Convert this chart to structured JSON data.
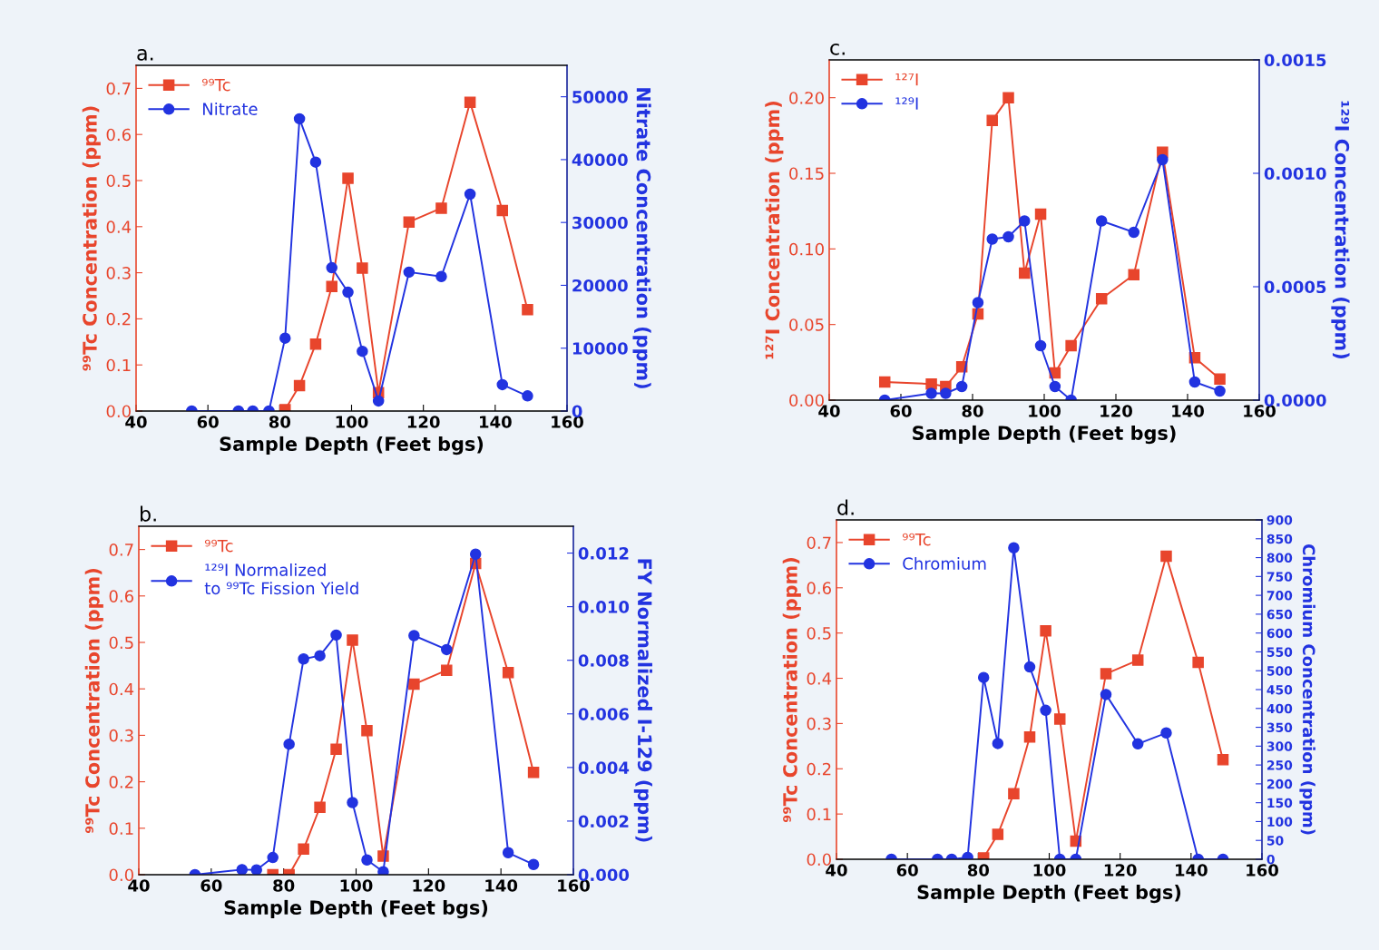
{
  "chart_data": [
    {
      "type": "line",
      "title": "a.",
      "xlabel": "Sample Depth (Feet bgs)",
      "ylabel": "⁹⁹Tc Concentration (ppm)",
      "y2label": "Nitrate Concentration (ppm)",
      "xlim": [
        40,
        160
      ],
      "xticks": [
        40,
        60,
        80,
        100,
        120,
        140,
        160
      ],
      "ylim": [
        0,
        0.75
      ],
      "yticks": [
        {
          "value": 0,
          "label": "0.0"
        },
        0.1,
        0.2,
        0.3,
        0.4,
        0.5,
        0.6,
        0.7
      ],
      "y2lim": [
        0,
        55000
      ],
      "y2ticks": [
        0,
        10000,
        20000,
        30000,
        40000,
        50000
      ],
      "legend": "top left",
      "grid": false,
      "series": [
        {
          "name": "⁹⁹Tc",
          "color": "#e8452c",
          "marker": "square",
          "x": [
            81.5,
            85.5,
            90,
            94.5,
            99,
            103,
            107.5,
            116,
            125,
            133,
            142,
            149
          ],
          "values": [
            0.003,
            0.055,
            0.145,
            0.27,
            0.505,
            0.31,
            0.04,
            0.41,
            0.44,
            0.67,
            0.435,
            0.22
          ]
        },
        {
          "name": "Nitrate",
          "color": "#2233e0",
          "marker": "circle",
          "axis": "y2",
          "x": [
            55.5,
            68.5,
            72.5,
            77,
            81.5,
            85.5,
            90,
            94.5,
            99,
            103,
            107.5,
            116,
            125,
            133,
            142,
            149
          ],
          "values": [
            0,
            0,
            0,
            0,
            11600,
            46500,
            39600,
            22800,
            18900,
            9500,
            1600,
            22100,
            21400,
            34500,
            4200,
            2400
          ]
        }
      ]
    },
    {
      "type": "line",
      "title": "c.",
      "xlabel": "Sample Depth (Feet bgs)",
      "ylabel": "¹²⁷I Concentration (ppm)",
      "y2label": "¹²⁹I Concentration (ppm)",
      "xlim": [
        40,
        160
      ],
      "xticks": [
        40,
        60,
        80,
        100,
        120,
        140,
        160
      ],
      "ylim": [
        0,
        0.225
      ],
      "yticks": [
        {
          "value": 0,
          "label": "0.00"
        },
        0.05,
        {
          "value": 0.1,
          "label": "0.10"
        },
        0.15,
        {
          "value": 0.2,
          "label": "0.20"
        }
      ],
      "y2lim": [
        0,
        0.0015
      ],
      "y2ticks": [
        {
          "value": 0,
          "label": "0.0000"
        },
        0.0005,
        {
          "value": 0.001,
          "label": "0.0010"
        },
        0.0015
      ],
      "legend": "top left",
      "grid": false,
      "series": [
        {
          "name": "¹²⁷I",
          "color": "#e8452c",
          "marker": "square",
          "x": [
            55.5,
            68.5,
            72.5,
            77,
            81.5,
            85.5,
            90,
            94.5,
            99,
            103,
            107.5,
            116,
            125,
            133,
            142,
            149
          ],
          "values": [
            0.012,
            0.0107,
            0.009,
            0.022,
            0.057,
            0.185,
            0.2,
            0.084,
            0.123,
            0.018,
            0.036,
            0.067,
            0.083,
            0.164,
            0.028,
            0.014
          ]
        },
        {
          "name": "¹²⁹I",
          "color": "#2233e0",
          "marker": "circle",
          "axis": "y2",
          "x": [
            55.5,
            68.5,
            72.5,
            77,
            81.5,
            85.5,
            90,
            94.5,
            99,
            103,
            107.5,
            116,
            125,
            133,
            142,
            149
          ],
          "values": [
            0,
            3e-05,
            3e-05,
            6e-05,
            0.00043,
            0.00071,
            0.00072,
            0.00079,
            0.00024,
            6e-05,
            0.0,
            0.00079,
            0.00074,
            0.00106,
            8e-05,
            4e-05
          ]
        }
      ]
    },
    {
      "type": "line",
      "title": "b.",
      "xlabel": "Sample Depth (Feet bgs)",
      "ylabel": "⁹⁹Tc Concentration (ppm)",
      "y2label": "FY Normalized I-129 (ppm)",
      "xlim": [
        40,
        160
      ],
      "xticks": [
        40,
        60,
        80,
        100,
        120,
        140,
        160
      ],
      "ylim": [
        0,
        0.75
      ],
      "yticks": [
        {
          "value": 0,
          "label": "0.0"
        },
        0.1,
        0.2,
        0.3,
        0.4,
        0.5,
        0.6,
        0.7
      ],
      "y2lim": [
        0,
        0.013
      ],
      "y2ticks": [
        {
          "value": 0,
          "label": "0.000"
        },
        0.002,
        0.004,
        0.006,
        0.008,
        {
          "value": 0.01,
          "label": "0.010"
        },
        0.012
      ],
      "legend": "top left",
      "grid": false,
      "series": [
        {
          "name": "⁹⁹Tc",
          "color": "#e8452c",
          "marker": "square",
          "x": [
            77,
            81.5,
            85.5,
            90,
            94.5,
            99,
            103,
            107.5,
            116,
            125,
            133,
            142,
            149
          ],
          "values": [
            0.0,
            0.0,
            0.055,
            0.145,
            0.27,
            0.505,
            0.31,
            0.04,
            0.41,
            0.44,
            0.67,
            0.435,
            0.22
          ]
        },
        {
          "name": "¹²⁹I Normalized\nto ⁹⁹Tc Fission Yield",
          "color": "#2233e0",
          "marker": "circle",
          "axis": "y2",
          "x": [
            55.5,
            68.5,
            72.5,
            77,
            81.5,
            85.5,
            90,
            94.5,
            99,
            103,
            107.5,
            116,
            125,
            133,
            142,
            149
          ],
          "values": [
            0,
            0.00019,
            0.00018,
            0.00064,
            0.00487,
            0.00805,
            0.00817,
            0.00894,
            0.00269,
            0.00055,
            0.00011,
            0.00892,
            0.0084,
            0.01196,
            0.00082,
            0.00038
          ]
        }
      ]
    },
    {
      "type": "line",
      "title": "d.",
      "xlabel": "Sample Depth (Feet bgs)",
      "ylabel": "⁹⁹Tc Concentration (ppm)",
      "y2label": "Chromium Concentration (ppm)",
      "xlim": [
        40,
        160
      ],
      "xticks": [
        40,
        60,
        80,
        100,
        120,
        140,
        160
      ],
      "ylim": [
        0,
        0.75
      ],
      "yticks": [
        {
          "value": 0,
          "label": "0.0"
        },
        0.1,
        0.2,
        0.3,
        0.4,
        0.5,
        0.6,
        0.7
      ],
      "y2lim": [
        0,
        900
      ],
      "y2ticks": [
        0,
        50,
        100,
        150,
        200,
        250,
        300,
        350,
        400,
        450,
        500,
        550,
        600,
        650,
        700,
        750,
        800,
        850,
        900
      ],
      "legend": "top left",
      "grid": false,
      "series": [
        {
          "name": "⁹⁹Tc",
          "color": "#e8452c",
          "marker": "square",
          "x": [
            81.5,
            85.5,
            90,
            94.5,
            99,
            103,
            107.5,
            116,
            125,
            133,
            142,
            149
          ],
          "values": [
            0.003,
            0.055,
            0.145,
            0.27,
            0.505,
            0.31,
            0.04,
            0.41,
            0.44,
            0.67,
            0.435,
            0.22
          ]
        },
        {
          "name": "Chromium",
          "color": "#2233e0",
          "marker": "circle",
          "axis": "y2",
          "x": [
            55.5,
            68.5,
            72.5,
            77,
            81.5,
            85.5,
            90,
            94.5,
            99,
            103,
            107.5,
            116,
            125,
            133,
            142,
            149
          ],
          "values": [
            0,
            0,
            0,
            5,
            482,
            307,
            826,
            510,
            395,
            0,
            0,
            437,
            306,
            335,
            0,
            0
          ]
        }
      ]
    }
  ]
}
